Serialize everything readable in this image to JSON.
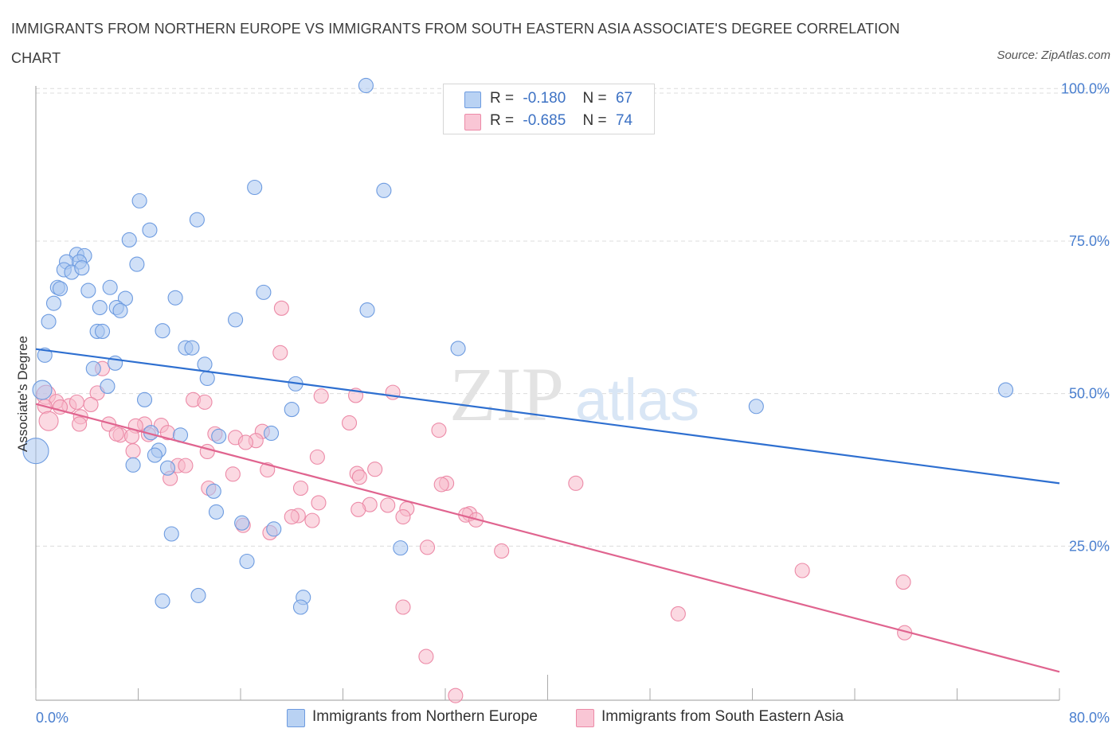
{
  "title": "IMMIGRANTS FROM NORTHERN EUROPE VS IMMIGRANTS FROM SOUTH EASTERN ASIA ASSOCIATE'S DEGREE CORRELATION CHART",
  "source": "Source: ZipAtlas.com",
  "watermark": {
    "zip": "ZIP",
    "atlas": "atlas"
  },
  "colors": {
    "blue_fill": "#a9c7f0",
    "blue_stroke": "#6d9be0",
    "blue_line": "#2e6fd0",
    "pink_fill": "#f7b9cb",
    "pink_stroke": "#ec8aa7",
    "pink_line": "#e0648f",
    "axis_text": "#4a7fcf",
    "grid": "#dcdcdc"
  },
  "legend": {
    "series1": {
      "r_label": "R =",
      "r_value": "-0.180",
      "n_label": "N =",
      "n_value": "67"
    },
    "series2": {
      "r_label": "R =",
      "r_value": "-0.685",
      "n_label": "N =",
      "n_value": "74"
    }
  },
  "chart_data": {
    "type": "scatter",
    "title": "IMMIGRANTS FROM NORTHERN EUROPE VS IMMIGRANTS FROM SOUTH EASTERN ASIA ASSOCIATE'S DEGREE CORRELATION CHART",
    "xlabel": "",
    "ylabel": "Associate's Degree",
    "xlim": [
      0,
      80
    ],
    "ylim": [
      0,
      100
    ],
    "x_tick_labels": [
      "0.0%",
      "80.0%"
    ],
    "y_ticks": [
      25,
      50,
      75,
      100
    ],
    "y_tick_labels": [
      "25.0%",
      "50.0%",
      "75.0%",
      "100.0%"
    ],
    "grid": true,
    "series": [
      {
        "name": "Immigrants from Northern Europe",
        "r": -0.18,
        "n": 67,
        "trend": {
          "x": [
            0,
            80
          ],
          "y": [
            57.3,
            35.3
          ]
        },
        "points": [
          {
            "x": 25.8,
            "y": 100.5
          },
          {
            "x": 17.1,
            "y": 83.8
          },
          {
            "x": 27.2,
            "y": 83.3
          },
          {
            "x": 8.1,
            "y": 81.6
          },
          {
            "x": 12.6,
            "y": 78.5
          },
          {
            "x": 8.9,
            "y": 76.8
          },
          {
            "x": 7.3,
            "y": 75.2
          },
          {
            "x": 3.2,
            "y": 72.8
          },
          {
            "x": 3.8,
            "y": 72.6
          },
          {
            "x": 2.4,
            "y": 71.6
          },
          {
            "x": 3.4,
            "y": 71.6
          },
          {
            "x": 7.9,
            "y": 71.2
          },
          {
            "x": 2.2,
            "y": 70.3
          },
          {
            "x": 2.8,
            "y": 69.9
          },
          {
            "x": 3.6,
            "y": 70.6
          },
          {
            "x": 1.7,
            "y": 67.4
          },
          {
            "x": 1.9,
            "y": 67.2
          },
          {
            "x": 4.1,
            "y": 66.9
          },
          {
            "x": 5.8,
            "y": 67.4
          },
          {
            "x": 17.8,
            "y": 66.6
          },
          {
            "x": 10.9,
            "y": 65.7
          },
          {
            "x": 7.0,
            "y": 65.6
          },
          {
            "x": 1.4,
            "y": 64.8
          },
          {
            "x": 5.0,
            "y": 64.1
          },
          {
            "x": 6.3,
            "y": 64.1
          },
          {
            "x": 6.6,
            "y": 63.6
          },
          {
            "x": 25.9,
            "y": 63.7
          },
          {
            "x": 15.6,
            "y": 62.1
          },
          {
            "x": 1.0,
            "y": 61.8
          },
          {
            "x": 4.8,
            "y": 60.2
          },
          {
            "x": 5.2,
            "y": 60.2
          },
          {
            "x": 9.9,
            "y": 60.3
          },
          {
            "x": 11.7,
            "y": 57.5
          },
          {
            "x": 12.2,
            "y": 57.5
          },
          {
            "x": 33.0,
            "y": 57.4
          },
          {
            "x": 0.7,
            "y": 56.3
          },
          {
            "x": 6.2,
            "y": 55.0
          },
          {
            "x": 13.2,
            "y": 54.8
          },
          {
            "x": 4.5,
            "y": 54.1
          },
          {
            "x": 13.4,
            "y": 52.5
          },
          {
            "x": 20.3,
            "y": 51.6
          },
          {
            "x": 5.6,
            "y": 51.2
          },
          {
            "x": 0.5,
            "y": 50.6
          },
          {
            "x": 75.8,
            "y": 50.6
          },
          {
            "x": 8.5,
            "y": 49.0
          },
          {
            "x": 56.3,
            "y": 47.9
          },
          {
            "x": 20.0,
            "y": 47.4
          },
          {
            "x": 9.0,
            "y": 43.6
          },
          {
            "x": 11.3,
            "y": 43.2
          },
          {
            "x": 14.3,
            "y": 43.0
          },
          {
            "x": 18.4,
            "y": 43.5
          },
          {
            "x": 9.6,
            "y": 40.7
          },
          {
            "x": 9.3,
            "y": 39.9
          },
          {
            "x": 7.6,
            "y": 38.3
          },
          {
            "x": 10.3,
            "y": 37.8
          },
          {
            "x": 0.0,
            "y": 40.6
          },
          {
            "x": 13.9,
            "y": 34.0
          },
          {
            "x": 14.1,
            "y": 30.6
          },
          {
            "x": 16.1,
            "y": 28.8
          },
          {
            "x": 18.6,
            "y": 27.8
          },
          {
            "x": 10.6,
            "y": 27.0
          },
          {
            "x": 28.5,
            "y": 24.7
          },
          {
            "x": 16.5,
            "y": 22.5
          },
          {
            "x": 12.7,
            "y": 16.9
          },
          {
            "x": 20.9,
            "y": 16.6
          },
          {
            "x": 9.9,
            "y": 16.0
          },
          {
            "x": 20.7,
            "y": 15.0
          }
        ]
      },
      {
        "name": "Immigrants from South Eastern Asia",
        "r": -0.685,
        "n": 74,
        "trend": {
          "x": [
            0,
            80
          ],
          "y": [
            48.3,
            4.4
          ]
        },
        "points": [
          {
            "x": 19.2,
            "y": 64.0
          },
          {
            "x": 19.1,
            "y": 56.7
          },
          {
            "x": 5.2,
            "y": 54.1
          },
          {
            "x": 0.8,
            "y": 49.8
          },
          {
            "x": 27.9,
            "y": 50.2
          },
          {
            "x": 4.8,
            "y": 50.1
          },
          {
            "x": 22.3,
            "y": 49.6
          },
          {
            "x": 25.0,
            "y": 49.7
          },
          {
            "x": 12.3,
            "y": 49.0
          },
          {
            "x": 13.2,
            "y": 48.6
          },
          {
            "x": 1.6,
            "y": 48.7
          },
          {
            "x": 2.6,
            "y": 48.0
          },
          {
            "x": 3.2,
            "y": 48.6
          },
          {
            "x": 1.9,
            "y": 47.8
          },
          {
            "x": 4.3,
            "y": 48.2
          },
          {
            "x": 0.7,
            "y": 47.9
          },
          {
            "x": 3.5,
            "y": 46.2
          },
          {
            "x": 1.0,
            "y": 45.5
          },
          {
            "x": 8.5,
            "y": 45.0
          },
          {
            "x": 5.7,
            "y": 45.0
          },
          {
            "x": 24.5,
            "y": 45.2
          },
          {
            "x": 3.4,
            "y": 45.0
          },
          {
            "x": 9.8,
            "y": 44.8
          },
          {
            "x": 7.8,
            "y": 44.7
          },
          {
            "x": 31.5,
            "y": 44.0
          },
          {
            "x": 6.6,
            "y": 43.2
          },
          {
            "x": 6.3,
            "y": 43.4
          },
          {
            "x": 10.3,
            "y": 43.6
          },
          {
            "x": 17.7,
            "y": 43.8
          },
          {
            "x": 7.5,
            "y": 43.0
          },
          {
            "x": 14.0,
            "y": 43.4
          },
          {
            "x": 15.6,
            "y": 42.8
          },
          {
            "x": 17.2,
            "y": 42.3
          },
          {
            "x": 16.4,
            "y": 42.0
          },
          {
            "x": 8.8,
            "y": 43.3
          },
          {
            "x": 7.6,
            "y": 40.6
          },
          {
            "x": 13.4,
            "y": 40.5
          },
          {
            "x": 22.0,
            "y": 39.6
          },
          {
            "x": 11.1,
            "y": 38.2
          },
          {
            "x": 11.7,
            "y": 38.2
          },
          {
            "x": 18.1,
            "y": 37.5
          },
          {
            "x": 26.5,
            "y": 37.6
          },
          {
            "x": 15.4,
            "y": 36.8
          },
          {
            "x": 25.1,
            "y": 36.9
          },
          {
            "x": 10.5,
            "y": 36.1
          },
          {
            "x": 25.3,
            "y": 36.3
          },
          {
            "x": 42.2,
            "y": 35.3
          },
          {
            "x": 32.1,
            "y": 35.3
          },
          {
            "x": 31.7,
            "y": 35.1
          },
          {
            "x": 13.5,
            "y": 34.5
          },
          {
            "x": 20.7,
            "y": 34.5
          },
          {
            "x": 22.1,
            "y": 32.1
          },
          {
            "x": 26.1,
            "y": 31.8
          },
          {
            "x": 27.5,
            "y": 31.7
          },
          {
            "x": 29.0,
            "y": 31.1
          },
          {
            "x": 20.5,
            "y": 30.0
          },
          {
            "x": 20.0,
            "y": 29.8
          },
          {
            "x": 28.7,
            "y": 29.8
          },
          {
            "x": 33.9,
            "y": 30.3
          },
          {
            "x": 33.6,
            "y": 30.1
          },
          {
            "x": 21.6,
            "y": 29.2
          },
          {
            "x": 34.4,
            "y": 29.3
          },
          {
            "x": 25.2,
            "y": 31.0
          },
          {
            "x": 16.2,
            "y": 28.4
          },
          {
            "x": 18.3,
            "y": 27.2
          },
          {
            "x": 30.6,
            "y": 24.8
          },
          {
            "x": 36.4,
            "y": 24.2
          },
          {
            "x": 59.9,
            "y": 21.0
          },
          {
            "x": 67.8,
            "y": 19.1
          },
          {
            "x": 28.7,
            "y": 15.0
          },
          {
            "x": 50.2,
            "y": 13.9
          },
          {
            "x": 67.9,
            "y": 10.8
          },
          {
            "x": 30.5,
            "y": 6.9
          },
          {
            "x": 32.8,
            "y": 0.5
          }
        ]
      }
    ]
  }
}
